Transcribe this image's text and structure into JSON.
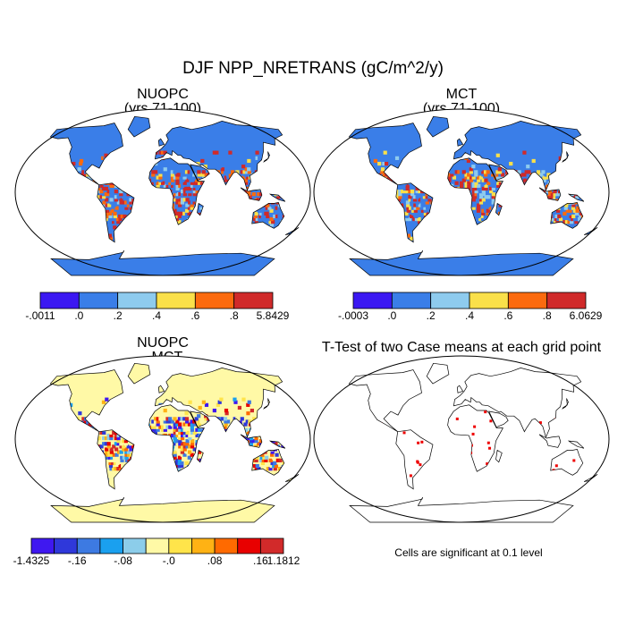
{
  "title": "DJF NPP_NRETRANS (gC/m^2/y)",
  "panels": [
    {
      "title": [
        "NUOPC",
        "(yrs 71-100)"
      ],
      "colorbar": {
        "colors": [
          "#3b18f2",
          "#3a7ee8",
          "#8ecbee",
          "#fae04a",
          "#fb6a0e",
          "#d02a2a"
        ],
        "labels": [
          "-.0011",
          ".0",
          ".2",
          ".4",
          ".6",
          ".8",
          "5.8429"
        ]
      }
    },
    {
      "title": [
        "MCT",
        "(yrs 71-100)"
      ],
      "colorbar": {
        "colors": [
          "#3b18f2",
          "#3a7ee8",
          "#8ecbee",
          "#fae04a",
          "#fb6a0e",
          "#d02a2a"
        ],
        "labels": [
          "-.0003",
          ".0",
          ".2",
          ".4",
          ".6",
          ".8",
          "6.0629"
        ]
      }
    },
    {
      "title": [
        "NUOPC",
        "- MCT"
      ],
      "colorbar": {
        "colors": [
          "#3f18f0",
          "#2f38da",
          "#3d7ae2",
          "#1aa0ef",
          "#8ccdea",
          "#fff9a6",
          "#ffe44a",
          "#ffb214",
          "#ff6a00",
          "#e80000",
          "#d22a2a"
        ],
        "labels": [
          "-1.4325",
          null,
          "-.16",
          null,
          "-.08",
          null,
          "-.0",
          null,
          ".08",
          null,
          ".16",
          "1.1812"
        ]
      }
    }
  ],
  "ttest": {
    "title": "T-Test of two Case means at each grid point",
    "note": "Cells are significant at 0.1 level"
  }
}
